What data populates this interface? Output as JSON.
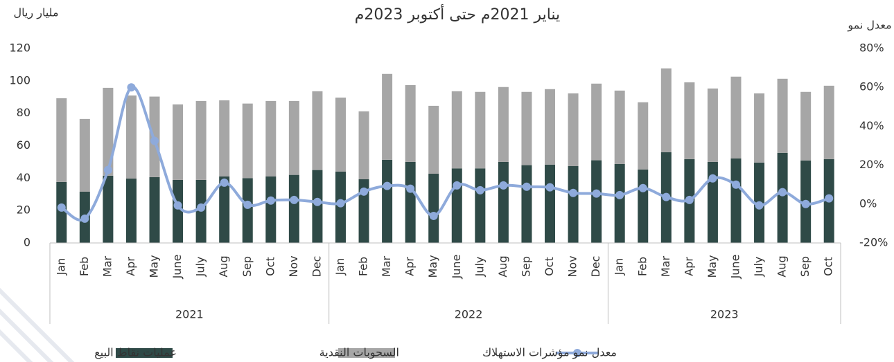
{
  "chart_data": {
    "type": "bar_line",
    "title": "يناير 2021م حتى أكتوبر 2023م",
    "y_label": "مليار ريال",
    "y2_label": "معدل نمو",
    "categories": [
      "Jan",
      "Feb",
      "Mar",
      "Apr",
      "May",
      "June",
      "July",
      "Aug",
      "Sep",
      "Oct",
      "Nov",
      "Dec",
      "Jan",
      "Feb",
      "Mar",
      "Apr",
      "May",
      "June",
      "July",
      "Aug",
      "Sep",
      "Oct",
      "Nov",
      "Dec",
      "Jan",
      "Feb",
      "Mar",
      "Apr",
      "May",
      "June",
      "July",
      "Aug",
      "Sep",
      "Oct"
    ],
    "group_labels": [
      "2021",
      "2022",
      "2023"
    ],
    "group_sizes": [
      12,
      12,
      10
    ],
    "stacked": true,
    "series": [
      {
        "name": "عمليات نقاط البيع",
        "color": "#2f4a47",
        "type": "bar",
        "values": [
          37.6,
          31.6,
          41.5,
          39.7,
          40.6,
          38.9,
          38.9,
          41,
          40,
          41,
          42,
          45,
          44,
          39.3,
          51.3,
          50,
          42.7,
          46,
          46,
          50,
          48,
          48.3,
          47.4,
          51,
          48.7,
          45.3,
          56,
          51.7,
          50,
          52.1,
          49.6,
          55.6,
          50.9,
          51.7
        ]
      },
      {
        "name": "السحوبات النقدية",
        "color": "#a6a6a6",
        "type": "bar",
        "values": [
          51.7,
          44.9,
          54.2,
          51.3,
          49.7,
          46.6,
          48.7,
          47,
          46,
          46.6,
          45.6,
          48.6,
          45.7,
          41.9,
          53,
          47.4,
          41.9,
          47.6,
          47.2,
          46.2,
          45.2,
          46.6,
          44.9,
          47.3,
          45.3,
          41.5,
          51.7,
          47.4,
          45.3,
          50.5,
          42.7,
          45.7,
          42.3,
          45.3
        ]
      },
      {
        "name": "معدل نمو مؤشرات الاستهلاك",
        "color": "#8eaadb",
        "type": "line",
        "axis": "y2",
        "values": [
          -1.8,
          -7.5,
          17.5,
          60,
          32.5,
          -0.7,
          -1.8,
          11,
          -0.4,
          1.8,
          2.1,
          1.1,
          0.4,
          6.4,
          9.3,
          7.9,
          -6.1,
          9.6,
          7.1,
          9.6,
          8.9,
          8.6,
          5.7,
          5.4,
          4.6,
          8.2,
          3.6,
          2.1,
          13.2,
          10,
          -0.7,
          6.1,
          0,
          2.9
        ]
      }
    ],
    "ylim": [
      0,
      120
    ],
    "yticks": [
      0,
      20,
      40,
      60,
      80,
      100,
      120
    ],
    "y2lim": [
      -20,
      80
    ],
    "y2ticks": [
      {
        "value": -20,
        "label": "-20%"
      },
      {
        "value": 0,
        "label": "0%"
      },
      {
        "value": 20,
        "label": "20%"
      },
      {
        "value": 40,
        "label": "40%"
      },
      {
        "value": 60,
        "label": "60%"
      },
      {
        "value": 80,
        "label": "80%"
      }
    ],
    "legend": "bottom"
  }
}
